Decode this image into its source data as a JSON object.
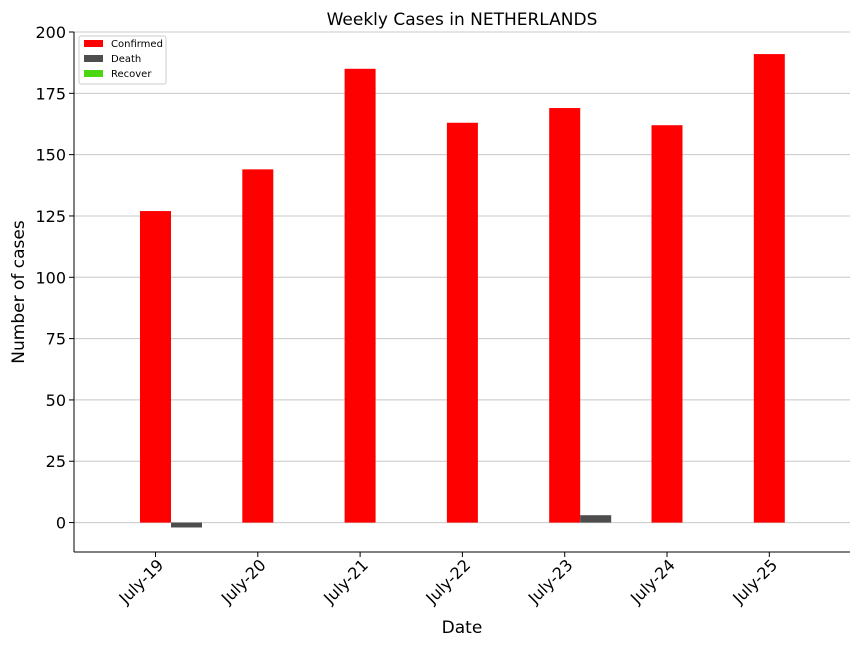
{
  "chart_data": {
    "type": "bar",
    "title": "Weekly Cases in NETHERLANDS",
    "xlabel": "Date",
    "ylabel": "Number of cases",
    "categories": [
      "July-19",
      "July-20",
      "July-21",
      "July-22",
      "July-23",
      "July-24",
      "July-25"
    ],
    "series": [
      {
        "name": "Confirmed",
        "color": "#ff0000",
        "values": [
          127,
          144,
          185,
          163,
          169,
          162,
          191
        ]
      },
      {
        "name": "Death",
        "color": "#4d4d4d",
        "values": [
          -2,
          0,
          0,
          0,
          3,
          0,
          0
        ]
      },
      {
        "name": "Recover",
        "color": "#4cd60f",
        "values": [
          0,
          0,
          0,
          0,
          0,
          0,
          0
        ]
      }
    ],
    "ylim": [
      -12,
      200
    ],
    "yticks": [
      0,
      25,
      50,
      75,
      100,
      125,
      150,
      175,
      200
    ],
    "grid": "horizontal",
    "legend_position": "top-left"
  }
}
